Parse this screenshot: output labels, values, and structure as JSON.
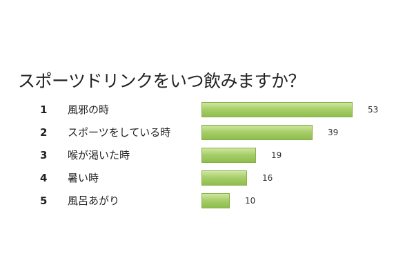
{
  "chart_data": {
    "type": "bar",
    "orientation": "horizontal",
    "title": "スポーツドリンクをいつ飲みますか？",
    "ranks": [
      "1",
      "2",
      "3",
      "4",
      "5"
    ],
    "categories": [
      "風邪の時",
      "スポーツをしている時",
      "喉が渇いた時",
      "暑い時",
      "風呂あがり"
    ],
    "values": [
      53,
      39,
      19,
      16,
      10
    ],
    "xlim": [
      0,
      55
    ],
    "grid": false,
    "legend": "none",
    "bar_color": "#9ccb5c"
  }
}
